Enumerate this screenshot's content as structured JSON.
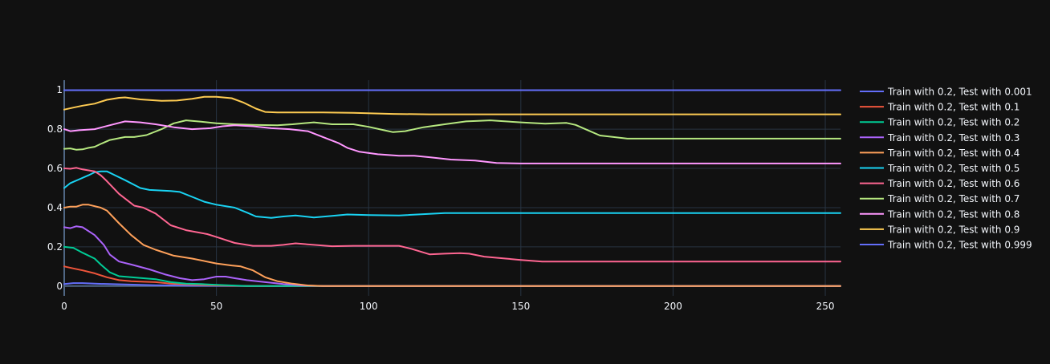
{
  "chart_data": {
    "type": "line",
    "title": "",
    "xlabel": "",
    "ylabel": "",
    "xlim": [
      0,
      255
    ],
    "ylim": [
      -0.05,
      1.05
    ],
    "x_ticks": [
      0,
      50,
      100,
      150,
      200,
      250
    ],
    "y_ticks": [
      0,
      0.2,
      0.4,
      0.6,
      0.8,
      1
    ],
    "grid": true,
    "legend_position": "right",
    "background": "#111111",
    "series": [
      {
        "name": "Train with 0.2, Test with 0.001",
        "color": "#636efa",
        "points": [
          [
            0,
            0.01
          ],
          [
            3,
            0.015
          ],
          [
            6,
            0.015
          ],
          [
            10,
            0.012
          ],
          [
            20,
            0.008
          ],
          [
            30,
            0.004
          ],
          [
            40,
            0.002
          ],
          [
            50,
            0.001
          ],
          [
            60,
            0.0
          ],
          [
            80,
            0.0
          ],
          [
            120,
            0.0
          ],
          [
            200,
            0.0
          ],
          [
            255,
            0.0
          ]
        ]
      },
      {
        "name": "Train with 0.2, Test with 0.1",
        "color": "#ef553b",
        "points": [
          [
            0,
            0.1
          ],
          [
            3,
            0.09
          ],
          [
            6,
            0.08
          ],
          [
            10,
            0.065
          ],
          [
            14,
            0.045
          ],
          [
            18,
            0.03
          ],
          [
            22,
            0.025
          ],
          [
            26,
            0.022
          ],
          [
            30,
            0.02
          ],
          [
            35,
            0.012
          ],
          [
            40,
            0.008
          ],
          [
            50,
            0.003
          ],
          [
            60,
            0.0
          ],
          [
            80,
            0.0
          ],
          [
            120,
            0.0
          ],
          [
            200,
            0.0
          ],
          [
            255,
            0.0
          ]
        ]
      },
      {
        "name": "Train with 0.2, Test with 0.2",
        "color": "#00cc96",
        "points": [
          [
            0,
            0.2
          ],
          [
            3,
            0.195
          ],
          [
            6,
            0.17
          ],
          [
            10,
            0.14
          ],
          [
            12,
            0.11
          ],
          [
            15,
            0.07
          ],
          [
            18,
            0.05
          ],
          [
            22,
            0.045
          ],
          [
            26,
            0.04
          ],
          [
            30,
            0.035
          ],
          [
            35,
            0.02
          ],
          [
            40,
            0.012
          ],
          [
            45,
            0.01
          ],
          [
            50,
            0.006
          ],
          [
            55,
            0.003
          ],
          [
            60,
            0.0
          ],
          [
            80,
            0.0
          ],
          [
            120,
            0.0
          ],
          [
            200,
            0.0
          ],
          [
            255,
            0.0
          ]
        ]
      },
      {
        "name": "Train with 0.2, Test with 0.3",
        "color": "#ab63fa",
        "points": [
          [
            0,
            0.3
          ],
          [
            2,
            0.295
          ],
          [
            4,
            0.305
          ],
          [
            6,
            0.3
          ],
          [
            10,
            0.26
          ],
          [
            13,
            0.21
          ],
          [
            15,
            0.16
          ],
          [
            18,
            0.125
          ],
          [
            22,
            0.11
          ],
          [
            28,
            0.085
          ],
          [
            33,
            0.06
          ],
          [
            38,
            0.04
          ],
          [
            42,
            0.03
          ],
          [
            46,
            0.035
          ],
          [
            50,
            0.048
          ],
          [
            53,
            0.048
          ],
          [
            56,
            0.04
          ],
          [
            60,
            0.03
          ],
          [
            66,
            0.02
          ],
          [
            72,
            0.01
          ],
          [
            78,
            0.003
          ],
          [
            85,
            0.0
          ],
          [
            120,
            0.0
          ],
          [
            200,
            0.0
          ],
          [
            255,
            0.0
          ]
        ]
      },
      {
        "name": "Train with 0.2, Test with 0.4",
        "color": "#ffa15a",
        "points": [
          [
            0,
            0.4
          ],
          [
            2,
            0.405
          ],
          [
            4,
            0.405
          ],
          [
            6,
            0.415
          ],
          [
            8,
            0.415
          ],
          [
            12,
            0.4
          ],
          [
            14,
            0.385
          ],
          [
            18,
            0.32
          ],
          [
            22,
            0.26
          ],
          [
            26,
            0.21
          ],
          [
            30,
            0.185
          ],
          [
            36,
            0.155
          ],
          [
            42,
            0.14
          ],
          [
            50,
            0.115
          ],
          [
            55,
            0.105
          ],
          [
            58,
            0.1
          ],
          [
            62,
            0.08
          ],
          [
            66,
            0.045
          ],
          [
            70,
            0.025
          ],
          [
            75,
            0.012
          ],
          [
            80,
            0.003
          ],
          [
            85,
            0.0
          ],
          [
            120,
            0.0
          ],
          [
            200,
            0.0
          ],
          [
            255,
            0.0
          ]
        ]
      },
      {
        "name": "Train with 0.2, Test with 0.5",
        "color": "#19d3f3",
        "points": [
          [
            0,
            0.5
          ],
          [
            2,
            0.525
          ],
          [
            5,
            0.545
          ],
          [
            8,
            0.565
          ],
          [
            10,
            0.58
          ],
          [
            12,
            0.585
          ],
          [
            14,
            0.585
          ],
          [
            16,
            0.57
          ],
          [
            20,
            0.54
          ],
          [
            25,
            0.5
          ],
          [
            28,
            0.49
          ],
          [
            35,
            0.485
          ],
          [
            38,
            0.48
          ],
          [
            42,
            0.455
          ],
          [
            46,
            0.43
          ],
          [
            50,
            0.415
          ],
          [
            56,
            0.4
          ],
          [
            60,
            0.375
          ],
          [
            63,
            0.355
          ],
          [
            68,
            0.348
          ],
          [
            72,
            0.355
          ],
          [
            76,
            0.36
          ],
          [
            82,
            0.35
          ],
          [
            88,
            0.358
          ],
          [
            93,
            0.365
          ],
          [
            100,
            0.362
          ],
          [
            110,
            0.36
          ],
          [
            125,
            0.372
          ],
          [
            140,
            0.372
          ],
          [
            200,
            0.372
          ],
          [
            255,
            0.372
          ]
        ]
      },
      {
        "name": "Train with 0.2, Test with 0.6",
        "color": "#ff6692",
        "points": [
          [
            0,
            0.6
          ],
          [
            2,
            0.598
          ],
          [
            4,
            0.603
          ],
          [
            6,
            0.595
          ],
          [
            10,
            0.585
          ],
          [
            12,
            0.565
          ],
          [
            14,
            0.535
          ],
          [
            18,
            0.47
          ],
          [
            23,
            0.41
          ],
          [
            26,
            0.4
          ],
          [
            30,
            0.37
          ],
          [
            35,
            0.31
          ],
          [
            40,
            0.285
          ],
          [
            47,
            0.265
          ],
          [
            50,
            0.25
          ],
          [
            56,
            0.22
          ],
          [
            62,
            0.205
          ],
          [
            68,
            0.205
          ],
          [
            72,
            0.21
          ],
          [
            76,
            0.218
          ],
          [
            82,
            0.21
          ],
          [
            88,
            0.203
          ],
          [
            95,
            0.205
          ],
          [
            100,
            0.205
          ],
          [
            110,
            0.205
          ],
          [
            114,
            0.19
          ],
          [
            120,
            0.162
          ],
          [
            125,
            0.165
          ],
          [
            130,
            0.168
          ],
          [
            133,
            0.165
          ],
          [
            138,
            0.15
          ],
          [
            145,
            0.14
          ],
          [
            150,
            0.133
          ],
          [
            157,
            0.125
          ],
          [
            200,
            0.125
          ],
          [
            255,
            0.125
          ]
        ]
      },
      {
        "name": "Train with 0.2, Test with 0.7",
        "color": "#b6e880",
        "points": [
          [
            0,
            0.7
          ],
          [
            2,
            0.702
          ],
          [
            4,
            0.695
          ],
          [
            6,
            0.697
          ],
          [
            8,
            0.705
          ],
          [
            10,
            0.71
          ],
          [
            12,
            0.725
          ],
          [
            15,
            0.745
          ],
          [
            20,
            0.76
          ],
          [
            23,
            0.76
          ],
          [
            27,
            0.77
          ],
          [
            32,
            0.8
          ],
          [
            36,
            0.83
          ],
          [
            40,
            0.845
          ],
          [
            45,
            0.838
          ],
          [
            50,
            0.83
          ],
          [
            56,
            0.825
          ],
          [
            62,
            0.822
          ],
          [
            70,
            0.82
          ],
          [
            75,
            0.825
          ],
          [
            82,
            0.835
          ],
          [
            88,
            0.825
          ],
          [
            95,
            0.825
          ],
          [
            100,
            0.812
          ],
          [
            105,
            0.795
          ],
          [
            108,
            0.785
          ],
          [
            112,
            0.79
          ],
          [
            118,
            0.81
          ],
          [
            125,
            0.825
          ],
          [
            132,
            0.84
          ],
          [
            140,
            0.845
          ],
          [
            150,
            0.835
          ],
          [
            158,
            0.828
          ],
          [
            165,
            0.832
          ],
          [
            168,
            0.822
          ],
          [
            172,
            0.795
          ],
          [
            176,
            0.768
          ],
          [
            185,
            0.752
          ],
          [
            200,
            0.752
          ],
          [
            255,
            0.752
          ]
        ]
      },
      {
        "name": "Train with 0.2, Test with 0.8",
        "color": "#ff97ff",
        "points": [
          [
            0,
            0.8
          ],
          [
            2,
            0.79
          ],
          [
            5,
            0.795
          ],
          [
            10,
            0.8
          ],
          [
            15,
            0.82
          ],
          [
            20,
            0.84
          ],
          [
            25,
            0.835
          ],
          [
            30,
            0.825
          ],
          [
            36,
            0.81
          ],
          [
            42,
            0.8
          ],
          [
            48,
            0.805
          ],
          [
            52,
            0.815
          ],
          [
            56,
            0.82
          ],
          [
            62,
            0.815
          ],
          [
            68,
            0.805
          ],
          [
            74,
            0.8
          ],
          [
            80,
            0.79
          ],
          [
            85,
            0.76
          ],
          [
            90,
            0.73
          ],
          [
            93,
            0.705
          ],
          [
            97,
            0.685
          ],
          [
            103,
            0.672
          ],
          [
            110,
            0.665
          ],
          [
            115,
            0.665
          ],
          [
            120,
            0.657
          ],
          [
            127,
            0.645
          ],
          [
            135,
            0.64
          ],
          [
            142,
            0.628
          ],
          [
            150,
            0.625
          ],
          [
            200,
            0.625
          ],
          [
            255,
            0.625
          ]
        ]
      },
      {
        "name": "Train with 0.2, Test with 0.9",
        "color": "#fecb52",
        "points": [
          [
            0,
            0.9
          ],
          [
            3,
            0.91
          ],
          [
            6,
            0.92
          ],
          [
            10,
            0.93
          ],
          [
            14,
            0.95
          ],
          [
            18,
            0.96
          ],
          [
            20,
            0.962
          ],
          [
            25,
            0.952
          ],
          [
            32,
            0.945
          ],
          [
            37,
            0.946
          ],
          [
            42,
            0.955
          ],
          [
            46,
            0.965
          ],
          [
            50,
            0.965
          ],
          [
            55,
            0.958
          ],
          [
            59,
            0.935
          ],
          [
            63,
            0.905
          ],
          [
            66,
            0.888
          ],
          [
            70,
            0.885
          ],
          [
            75,
            0.885
          ],
          [
            85,
            0.885
          ],
          [
            95,
            0.883
          ],
          [
            108,
            0.878
          ],
          [
            120,
            0.876
          ],
          [
            150,
            0.876
          ],
          [
            200,
            0.876
          ],
          [
            255,
            0.876
          ]
        ]
      },
      {
        "name": "Train with 0.2, Test with 0.999",
        "color": "#636efa",
        "points": [
          [
            0,
            0.999
          ],
          [
            50,
            0.999
          ],
          [
            100,
            0.999
          ],
          [
            150,
            0.999
          ],
          [
            200,
            0.999
          ],
          [
            255,
            0.999
          ]
        ]
      }
    ]
  }
}
